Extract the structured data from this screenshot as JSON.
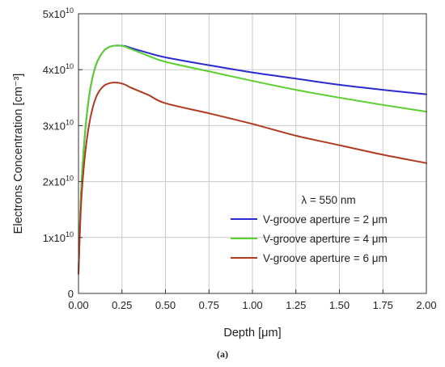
{
  "chart_data": {
    "type": "line",
    "xlabel": "Depth [μm]",
    "ylabel": "Electrons Concentration [cm⁻³]",
    "xlim": [
      0,
      2
    ],
    "ylim": [
      0,
      50000000000.0
    ],
    "x_ticks": [
      "0.00",
      "0.25",
      "0.50",
      "0.75",
      "1.00",
      "1.25",
      "1.50",
      "1.75",
      "2.00"
    ],
    "y_ticks": [
      {
        "mantissa": "0",
        "exponent": ""
      },
      {
        "mantissa": "1x10",
        "exponent": "10"
      },
      {
        "mantissa": "2x10",
        "exponent": "10"
      },
      {
        "mantissa": "3x10",
        "exponent": "10"
      },
      {
        "mantissa": "4x10",
        "exponent": "10"
      },
      {
        "mantissa": "5x10",
        "exponent": "10"
      }
    ],
    "grid": true,
    "legend_title": "λ = 550 nm",
    "legend_position": "lower-right",
    "caption": "(a)",
    "series": [
      {
        "name": "V-groove aperture = 2 μm",
        "color": "#2a2ad0",
        "x": [
          0,
          0.01,
          0.02,
          0.04,
          0.06,
          0.08,
          0.1,
          0.12,
          0.15,
          0.18,
          0.21,
          0.24,
          0.27,
          0.3,
          0.4,
          0.5,
          0.75,
          1.0,
          1.25,
          1.5,
          1.75,
          2.0
        ],
        "y": [
          3500000000.0,
          14000000000.0,
          21000000000.0,
          29500000000.0,
          35000000000.0,
          38500000000.0,
          40800000000.0,
          42200000000.0,
          43500000000.0,
          44100000000.0,
          44300000000.0,
          44300000000.0,
          44200000000.0,
          43900000000.0,
          43000000000.0,
          42200000000.0,
          40800000000.0,
          39500000000.0,
          38400000000.0,
          37300000000.0,
          36400000000.0,
          35600000000.0
        ]
      },
      {
        "name": "V-groove aperture = 4 μm",
        "color": "#5bd12e",
        "x": [
          0,
          0.01,
          0.02,
          0.04,
          0.06,
          0.08,
          0.1,
          0.12,
          0.15,
          0.18,
          0.21,
          0.24,
          0.27,
          0.3,
          0.4,
          0.5,
          0.75,
          1.0,
          1.25,
          1.5,
          1.75,
          2.0
        ],
        "y": [
          3500000000.0,
          14000000000.0,
          21000000000.0,
          29500000000.0,
          35000000000.0,
          38500000000.0,
          40800000000.0,
          42200000000.0,
          43500000000.0,
          44100000000.0,
          44300000000.0,
          44300000000.0,
          44100000000.0,
          43700000000.0,
          42500000000.0,
          41400000000.0,
          39700000000.0,
          38000000000.0,
          36400000000.0,
          35000000000.0,
          33700000000.0,
          32500000000.0
        ]
      },
      {
        "name": "V-groove aperture = 6 μm",
        "color": "#b03a1e",
        "x": [
          0,
          0.01,
          0.02,
          0.04,
          0.06,
          0.08,
          0.1,
          0.12,
          0.15,
          0.18,
          0.21,
          0.24,
          0.27,
          0.3,
          0.4,
          0.5,
          0.75,
          1.0,
          1.25,
          1.5,
          1.75,
          2.0
        ],
        "y": [
          3500000000.0,
          12500000000.0,
          18500000000.0,
          25500000000.0,
          30000000000.0,
          33000000000.0,
          35000000000.0,
          36200000000.0,
          37200000000.0,
          37600000000.0,
          37700000000.0,
          37600000000.0,
          37300000000.0,
          36800000000.0,
          35500000000.0,
          34000000000.0,
          32200000000.0,
          30300000000.0,
          28200000000.0,
          26500000000.0,
          24800000000.0,
          23300000000.0
        ]
      }
    ]
  }
}
